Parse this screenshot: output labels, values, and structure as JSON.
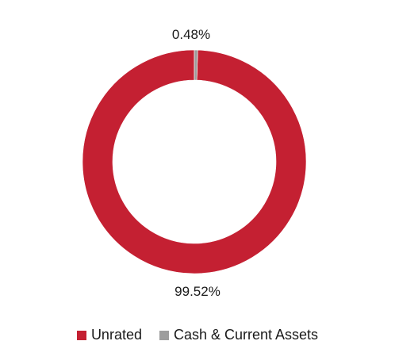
{
  "chart_data": {
    "type": "pie",
    "donut": true,
    "categories": [
      "Unrated",
      "Cash & Current Assets"
    ],
    "values": [
      99.52,
      0.48
    ],
    "labels": [
      "99.52%",
      "0.48%"
    ],
    "colors": [
      "#c42032",
      "#9d9d9d"
    ],
    "title": "",
    "legend_placement": "bottom"
  }
}
